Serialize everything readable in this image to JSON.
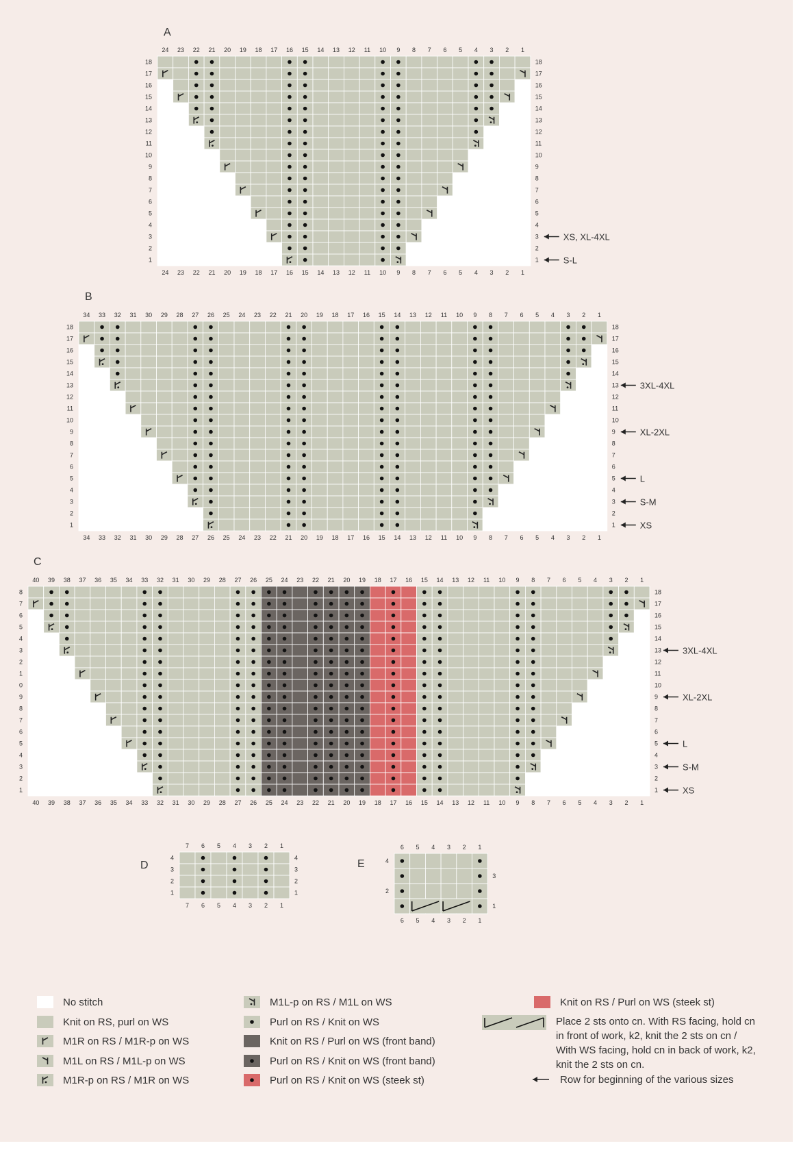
{
  "colors": {
    "background": "#f6ece8",
    "no_stitch": "#ffffff",
    "knit": "#c9cbbb",
    "front_band": "#6b6561",
    "steek": "#d96a6a",
    "grid_line": "#ffffff",
    "label_text": "#333333"
  },
  "charts": [
    {
      "id": "A",
      "label": "A",
      "cols": 24,
      "rows": 18,
      "purl_columns": [
        22,
        21,
        16,
        15,
        10,
        9,
        4,
        3
      ],
      "band_columns": [],
      "steek_columns": [],
      "edges": [
        {
          "row": 1,
          "left": 16,
          "right": 9
        },
        {
          "row": 2,
          "left": 16,
          "right": 9
        },
        {
          "row": 3,
          "left": 17,
          "right": 8
        },
        {
          "row": 4,
          "left": 17,
          "right": 8
        },
        {
          "row": 5,
          "left": 18,
          "right": 7
        },
        {
          "row": 6,
          "left": 18,
          "right": 7
        },
        {
          "row": 7,
          "left": 19,
          "right": 6
        },
        {
          "row": 8,
          "left": 19,
          "right": 6
        },
        {
          "row": 9,
          "left": 20,
          "right": 5
        },
        {
          "row": 10,
          "left": 20,
          "right": 5
        },
        {
          "row": 11,
          "left": 21,
          "right": 4
        },
        {
          "row": 12,
          "left": 21,
          "right": 4
        },
        {
          "row": 13,
          "left": 22,
          "right": 3
        },
        {
          "row": 14,
          "left": 22,
          "right": 3
        },
        {
          "row": 15,
          "left": 23,
          "right": 2
        },
        {
          "row": 16,
          "left": 23,
          "right": 2
        },
        {
          "row": 17,
          "left": 24,
          "right": 1
        },
        {
          "row": 18,
          "left": 24,
          "right": 1
        }
      ],
      "increases": [
        {
          "row": 1,
          "col": 16,
          "type": "m1r-p"
        },
        {
          "row": 1,
          "col": 9,
          "type": "m1l-p"
        },
        {
          "row": 3,
          "col": 17,
          "type": "m1r"
        },
        {
          "row": 3,
          "col": 8,
          "type": "m1l"
        },
        {
          "row": 5,
          "col": 18,
          "type": "m1r"
        },
        {
          "row": 5,
          "col": 7,
          "type": "m1l"
        },
        {
          "row": 7,
          "col": 19,
          "type": "m1r"
        },
        {
          "row": 7,
          "col": 6,
          "type": "m1l"
        },
        {
          "row": 9,
          "col": 20,
          "type": "m1r"
        },
        {
          "row": 9,
          "col": 5,
          "type": "m1l"
        },
        {
          "row": 11,
          "col": 21,
          "type": "m1r-p"
        },
        {
          "row": 11,
          "col": 4,
          "type": "m1l-p"
        },
        {
          "row": 13,
          "col": 22,
          "type": "m1r-p"
        },
        {
          "row": 13,
          "col": 3,
          "type": "m1l-p"
        },
        {
          "row": 15,
          "col": 23,
          "type": "m1r"
        },
        {
          "row": 15,
          "col": 2,
          "type": "m1l"
        },
        {
          "row": 17,
          "col": 24,
          "type": "m1r"
        },
        {
          "row": 17,
          "col": 1,
          "type": "m1l"
        }
      ],
      "size_markers": [
        {
          "row": 3,
          "text": "XS, XL-4XL"
        },
        {
          "row": 1,
          "text": "S-L"
        }
      ]
    },
    {
      "id": "B",
      "label": "B",
      "cols": 34,
      "rows": 18,
      "purl_columns": [
        33,
        32,
        27,
        26,
        21,
        20,
        15,
        14,
        9,
        8,
        3,
        2
      ],
      "band_columns": [],
      "steek_columns": [],
      "edges": [
        {
          "row": 1,
          "left": 26,
          "right": 9
        },
        {
          "row": 2,
          "left": 26,
          "right": 9
        },
        {
          "row": 3,
          "left": 27,
          "right": 8
        },
        {
          "row": 4,
          "left": 27,
          "right": 8
        },
        {
          "row": 5,
          "left": 28,
          "right": 7
        },
        {
          "row": 6,
          "left": 28,
          "right": 7
        },
        {
          "row": 7,
          "left": 29,
          "right": 6
        },
        {
          "row": 8,
          "left": 29,
          "right": 6
        },
        {
          "row": 9,
          "left": 30,
          "right": 5
        },
        {
          "row": 10,
          "left": 30,
          "right": 5
        },
        {
          "row": 11,
          "left": 31,
          "right": 4
        },
        {
          "row": 12,
          "left": 31,
          "right": 4
        },
        {
          "row": 13,
          "left": 32,
          "right": 3
        },
        {
          "row": 14,
          "left": 32,
          "right": 3
        },
        {
          "row": 15,
          "left": 33,
          "right": 2
        },
        {
          "row": 16,
          "left": 33,
          "right": 2
        },
        {
          "row": 17,
          "left": 34,
          "right": 1
        },
        {
          "row": 18,
          "left": 34,
          "right": 1
        }
      ],
      "increases": [
        {
          "row": 1,
          "col": 26,
          "type": "m1r-p"
        },
        {
          "row": 1,
          "col": 9,
          "type": "m1l-p"
        },
        {
          "row": 3,
          "col": 27,
          "type": "m1r-p"
        },
        {
          "row": 3,
          "col": 8,
          "type": "m1l-p"
        },
        {
          "row": 5,
          "col": 28,
          "type": "m1r"
        },
        {
          "row": 5,
          "col": 7,
          "type": "m1l"
        },
        {
          "row": 7,
          "col": 29,
          "type": "m1r"
        },
        {
          "row": 7,
          "col": 6,
          "type": "m1l"
        },
        {
          "row": 9,
          "col": 30,
          "type": "m1r"
        },
        {
          "row": 9,
          "col": 5,
          "type": "m1l"
        },
        {
          "row": 11,
          "col": 31,
          "type": "m1r"
        },
        {
          "row": 11,
          "col": 4,
          "type": "m1l"
        },
        {
          "row": 13,
          "col": 32,
          "type": "m1r-p"
        },
        {
          "row": 13,
          "col": 3,
          "type": "m1l-p"
        },
        {
          "row": 15,
          "col": 33,
          "type": "m1r-p"
        },
        {
          "row": 15,
          "col": 2,
          "type": "m1l-p"
        },
        {
          "row": 17,
          "col": 34,
          "type": "m1r"
        },
        {
          "row": 17,
          "col": 1,
          "type": "m1l"
        }
      ],
      "size_markers": [
        {
          "row": 13,
          "text": "3XL-4XL"
        },
        {
          "row": 9,
          "text": "XL-2XL"
        },
        {
          "row": 5,
          "text": "L"
        },
        {
          "row": 3,
          "text": "S-M"
        },
        {
          "row": 1,
          "text": "XS"
        }
      ]
    },
    {
      "id": "C",
      "label": "C",
      "cols": 40,
      "rows": 18,
      "left_row_labels": [
        "8",
        "7",
        "6",
        "5",
        "4",
        "3",
        "2",
        "1",
        "0",
        "9",
        "8",
        "7",
        "6",
        "5",
        "4",
        "3",
        "2",
        "1"
      ],
      "purl_columns": [
        39,
        38,
        33,
        32,
        27,
        26,
        25,
        24,
        22,
        21,
        20,
        19,
        17,
        15,
        14,
        9,
        8,
        3,
        2
      ],
      "band_columns": [
        25,
        24,
        23,
        22,
        21,
        20,
        19
      ],
      "steek_columns": [
        18,
        17,
        16
      ],
      "edges": [
        {
          "row": 1,
          "left": 32,
          "right": 9
        },
        {
          "row": 2,
          "left": 32,
          "right": 9
        },
        {
          "row": 3,
          "left": 33,
          "right": 8
        },
        {
          "row": 4,
          "left": 33,
          "right": 8
        },
        {
          "row": 5,
          "left": 34,
          "right": 7
        },
        {
          "row": 6,
          "left": 34,
          "right": 7
        },
        {
          "row": 7,
          "left": 35,
          "right": 6
        },
        {
          "row": 8,
          "left": 35,
          "right": 6
        },
        {
          "row": 9,
          "left": 36,
          "right": 5
        },
        {
          "row": 10,
          "left": 36,
          "right": 5
        },
        {
          "row": 11,
          "left": 37,
          "right": 4
        },
        {
          "row": 12,
          "left": 37,
          "right": 4
        },
        {
          "row": 13,
          "left": 38,
          "right": 3
        },
        {
          "row": 14,
          "left": 38,
          "right": 3
        },
        {
          "row": 15,
          "left": 39,
          "right": 2
        },
        {
          "row": 16,
          "left": 39,
          "right": 2
        },
        {
          "row": 17,
          "left": 40,
          "right": 1
        },
        {
          "row": 18,
          "left": 40,
          "right": 1
        }
      ],
      "increases": [
        {
          "row": 1,
          "col": 32,
          "type": "m1r-p"
        },
        {
          "row": 1,
          "col": 9,
          "type": "m1l-p"
        },
        {
          "row": 3,
          "col": 33,
          "type": "m1r-p"
        },
        {
          "row": 3,
          "col": 8,
          "type": "m1l-p"
        },
        {
          "row": 5,
          "col": 34,
          "type": "m1r"
        },
        {
          "row": 5,
          "col": 7,
          "type": "m1l"
        },
        {
          "row": 7,
          "col": 35,
          "type": "m1r"
        },
        {
          "row": 7,
          "col": 6,
          "type": "m1l"
        },
        {
          "row": 9,
          "col": 36,
          "type": "m1r"
        },
        {
          "row": 9,
          "col": 5,
          "type": "m1l"
        },
        {
          "row": 11,
          "col": 37,
          "type": "m1r"
        },
        {
          "row": 11,
          "col": 4,
          "type": "m1l"
        },
        {
          "row": 13,
          "col": 38,
          "type": "m1r-p"
        },
        {
          "row": 13,
          "col": 3,
          "type": "m1l-p"
        },
        {
          "row": 15,
          "col": 39,
          "type": "m1r-p"
        },
        {
          "row": 15,
          "col": 2,
          "type": "m1l-p"
        },
        {
          "row": 17,
          "col": 40,
          "type": "m1r"
        },
        {
          "row": 17,
          "col": 1,
          "type": "m1l"
        }
      ],
      "size_markers": [
        {
          "row": 13,
          "text": "3XL-4XL"
        },
        {
          "row": 9,
          "text": "XL-2XL"
        },
        {
          "row": 5,
          "text": "L"
        },
        {
          "row": 3,
          "text": "S-M"
        },
        {
          "row": 1,
          "text": "XS"
        }
      ]
    },
    {
      "id": "D",
      "label": "D",
      "cols": 7,
      "rows": 4,
      "purl_columns": [
        6,
        4,
        2
      ],
      "band_columns": [],
      "steek_columns": [],
      "edges": [],
      "increases": [],
      "size_markers": []
    },
    {
      "id": "E",
      "label": "E",
      "cols": 6,
      "rows": 4,
      "right_row_labels": [
        "",
        "3",
        "",
        "1"
      ],
      "left_row_labels": [
        "4",
        "",
        "2",
        ""
      ],
      "purl_columns": [
        6,
        1
      ],
      "band_columns": [],
      "steek_columns": [],
      "edges": [],
      "increases": [],
      "cables": [
        {
          "row": 1,
          "cols": [
            5,
            4
          ]
        },
        {
          "row": 1,
          "cols": [
            3,
            2
          ]
        }
      ],
      "size_markers": []
    }
  ],
  "legend": [
    {
      "key": "no-stitch",
      "label": "No stitch"
    },
    {
      "key": "knit",
      "label": "Knit on RS, purl on WS"
    },
    {
      "key": "m1r",
      "label": "M1R on RS / M1R-p on WS"
    },
    {
      "key": "m1l",
      "label": "M1L on RS / M1L-p on WS"
    },
    {
      "key": "m1r-p",
      "label": "M1R-p on RS / M1R on WS"
    },
    {
      "key": "m1l-p",
      "label": "M1L-p on RS / M1L on WS"
    },
    {
      "key": "purl",
      "label": "Purl on RS / Knit on WS"
    },
    {
      "key": "band-knit",
      "label": "Knit on RS / Purl on WS (front band)"
    },
    {
      "key": "band-purl",
      "label": "Purl on RS / Knit on WS (front band)"
    },
    {
      "key": "steek-purl",
      "label": "Purl on RS / Knit on WS (steek st)"
    },
    {
      "key": "steek-knit",
      "label": "Knit on RS / Purl on WS (steek st)"
    },
    {
      "key": "cable",
      "label": "Place 2 sts onto cn. With RS facing, hold cn\nin front of work, k2, knit the 2 sts on cn /\nWith WS facing, hold cn in back of work, k2,\nknit the 2 sts on cn."
    },
    {
      "key": "arrow",
      "label": "Row for beginning of the various sizes"
    }
  ]
}
